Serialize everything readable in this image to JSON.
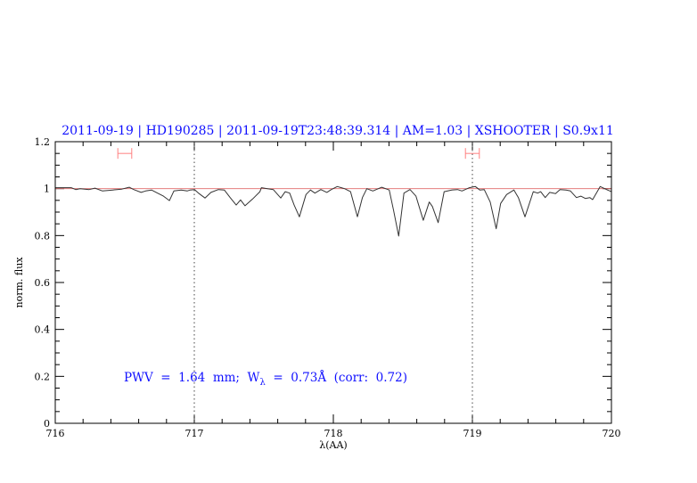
{
  "chart_data": {
    "type": "line",
    "title": "2011-09-19 | HD190285 | 2011-09-19T23:48:39.314 | AM=1.03 | XSHOOTER | S0.9x11",
    "xlabel": "λ(AA)",
    "ylabel": "norm. flux",
    "xlim": [
      716,
      720
    ],
    "ylim": [
      0,
      1.2
    ],
    "xticks": [
      716,
      717,
      718,
      719,
      720
    ],
    "xtick_labels": [
      "716",
      "717",
      "718",
      "719",
      "720"
    ],
    "x_minor_step": 0.2,
    "yticks": [
      0,
      0.2,
      0.4,
      0.6,
      0.8,
      1,
      1.2
    ],
    "ytick_labels": [
      "0",
      "0.2",
      "0.4",
      "0.6",
      "0.8",
      "1",
      "1.2"
    ],
    "y_minor_step": 0.05,
    "grid": false,
    "reference_line": {
      "y": 1,
      "color": "#e06a6a"
    },
    "vertical_dotted_lines": [
      717,
      719
    ],
    "error_bars": [
      {
        "x_from": 716.45,
        "x_to": 716.55,
        "y": 1.15,
        "color": "#ff8080"
      },
      {
        "x_from": 718.95,
        "x_to": 719.05,
        "y": 1.15,
        "color": "#ff8080"
      }
    ],
    "annotation": {
      "prefix": "PWV  =  1.64  mm;  W",
      "subscript": "λ",
      "suffix": "  =  0.73Å  (corr:  0.72)"
    },
    "series": [
      {
        "color": "#333333",
        "x": [
          716.0,
          716.05,
          716.115,
          716.147,
          716.179,
          716.244,
          716.286,
          716.34,
          716.415,
          716.479,
          716.532,
          716.564,
          716.617,
          716.65,
          716.692,
          716.735,
          716.778,
          716.821,
          716.853,
          716.906,
          716.949,
          716.97,
          717.002,
          717.034,
          717.077,
          717.12,
          717.173,
          717.216,
          717.258,
          717.301,
          717.333,
          717.365,
          717.419,
          717.472,
          717.483,
          717.526,
          717.568,
          717.622,
          717.654,
          717.686,
          717.718,
          717.756,
          717.803,
          717.835,
          717.867,
          717.91,
          717.953,
          717.985,
          718.028,
          718.081,
          718.124,
          718.173,
          718.209,
          718.241,
          718.284,
          718.348,
          718.402,
          718.434,
          718.47,
          718.508,
          718.551,
          718.594,
          718.647,
          718.69,
          718.712,
          718.754,
          718.797,
          718.851,
          718.893,
          718.925,
          718.979,
          719.021,
          719.053,
          719.085,
          719.128,
          719.171,
          719.203,
          719.246,
          719.299,
          719.331,
          719.378,
          719.438,
          719.47,
          719.491,
          719.524,
          719.556,
          719.598,
          719.63,
          719.673,
          719.705,
          719.748,
          719.78,
          719.812,
          719.844,
          719.865,
          719.919,
          719.972,
          720.0
        ],
        "y": [
          1.004,
          1.004,
          1.004,
          0.996,
          1.0,
          0.996,
          1.002,
          0.99,
          0.994,
          0.998,
          1.006,
          0.996,
          0.984,
          0.99,
          0.994,
          0.981,
          0.968,
          0.949,
          0.99,
          0.994,
          0.99,
          0.994,
          0.996,
          0.979,
          0.96,
          0.984,
          0.996,
          0.994,
          0.962,
          0.93,
          0.952,
          0.927,
          0.956,
          0.987,
          1.004,
          1.0,
          0.996,
          0.96,
          0.987,
          0.981,
          0.93,
          0.88,
          0.975,
          0.994,
          0.981,
          0.996,
          0.984,
          0.996,
          1.009,
          1.0,
          0.987,
          0.88,
          0.962,
          1.0,
          0.99,
          1.006,
          0.994,
          0.905,
          0.798,
          0.981,
          0.996,
          0.968,
          0.865,
          0.943,
          0.924,
          0.855,
          0.987,
          0.994,
          0.996,
          0.99,
          1.004,
          1.009,
          0.994,
          0.996,
          0.943,
          0.829,
          0.937,
          0.975,
          0.994,
          0.962,
          0.88,
          0.987,
          0.981,
          0.987,
          0.962,
          0.984,
          0.979,
          0.996,
          0.994,
          0.99,
          0.962,
          0.968,
          0.958,
          0.962,
          0.953,
          1.009,
          0.994,
          0.987
        ]
      }
    ]
  }
}
